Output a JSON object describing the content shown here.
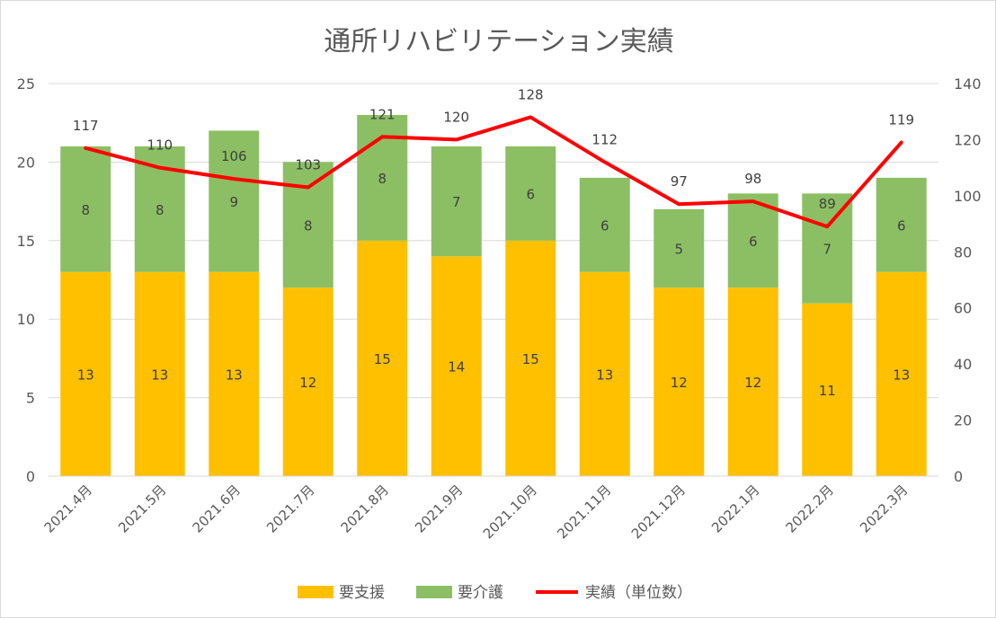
{
  "chart_data": {
    "type": "bar",
    "stacked": true,
    "title": "通所リハビリテーション実績",
    "categories": [
      "2021.4月",
      "2021.5月",
      "2021.6月",
      "2021.7月",
      "2021.8月",
      "2021.9月",
      "2021.10月",
      "2021.11月",
      "2021.12月",
      "2022.1月",
      "2022.2月",
      "2022.3月"
    ],
    "series": [
      {
        "name": "要支援",
        "type": "bar",
        "axis": "left",
        "color": "#FFC000",
        "values": [
          13,
          13,
          13,
          12,
          15,
          14,
          15,
          13,
          12,
          12,
          11,
          13
        ]
      },
      {
        "name": "要介護",
        "type": "bar",
        "axis": "left",
        "color": "#8CBF64",
        "values": [
          8,
          8,
          9,
          8,
          8,
          7,
          6,
          6,
          5,
          6,
          7,
          6
        ]
      },
      {
        "name": "実績（単位数）",
        "type": "line",
        "axis": "right",
        "color": "#FF0000",
        "values": [
          117,
          110,
          106,
          103,
          121,
          120,
          128,
          112,
          97,
          98,
          89,
          119
        ]
      }
    ],
    "yleft": {
      "min": 0,
      "max": 25,
      "ticks": [
        0,
        5,
        10,
        15,
        20,
        25
      ]
    },
    "yright": {
      "min": 0,
      "max": 140,
      "ticks": [
        0,
        20,
        40,
        60,
        80,
        100,
        120,
        140
      ]
    },
    "grid": true,
    "legend_position": "bottom"
  }
}
